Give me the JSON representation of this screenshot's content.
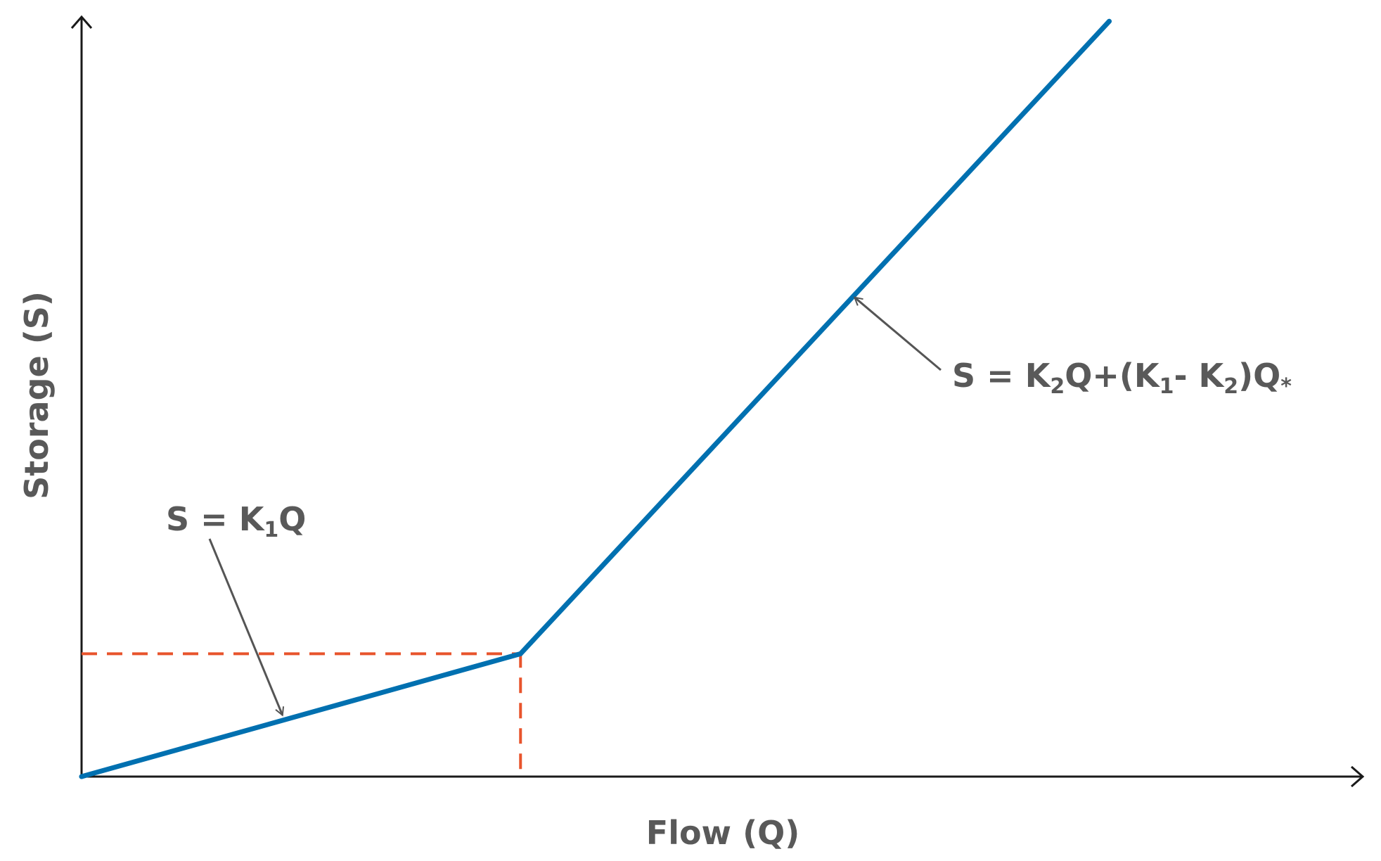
{
  "chart_data": {
    "type": "line",
    "title": "",
    "xlabel": "Flow (Q)",
    "ylabel": "Storage (S)",
    "xlim": [
      0,
      10
    ],
    "ylim": [
      0,
      10
    ],
    "grid": false,
    "legend": "none",
    "series": [
      {
        "x": [
          0,
          3.43,
          8.03
        ],
        "y": [
          0,
          1.62,
          9.96
        ],
        "color": "#0070b0"
      }
    ],
    "reference_lines": [
      {
        "orientation": "horizontal",
        "y": 1.62,
        "x_from": 0,
        "x_to": 3.43,
        "style": "dashed",
        "color": "#e8542c"
      },
      {
        "orientation": "vertical",
        "x": 3.43,
        "y_from": 0.1,
        "y_to": 1.62,
        "style": "dashed",
        "color": "#e8542c"
      }
    ],
    "annotations": [
      {
        "parts": [
          {
            "text": "S = K",
            "sub": false
          },
          {
            "text": "1",
            "sub": true
          },
          {
            "text": "Q",
            "sub": false
          }
        ],
        "points_to": {
          "x": 1.57,
          "y": 0.81
        }
      },
      {
        "parts": [
          {
            "text": "S = K",
            "sub": false
          },
          {
            "text": "2",
            "sub": true
          },
          {
            "text": "Q+(K",
            "sub": false
          },
          {
            "text": "1",
            "sub": true
          },
          {
            "text": "- K",
            "sub": false
          },
          {
            "text": "2",
            "sub": true
          },
          {
            "text": ")Q",
            "sub": false
          },
          {
            "text": "*",
            "sub": true
          }
        ],
        "points_to": {
          "x": 6.04,
          "y": 6.32
        }
      }
    ]
  },
  "colors": {
    "curve": "#0070b0",
    "reference": "#e8542c",
    "axis": "#1a1a1a",
    "label": "#595959",
    "pointer": "#555555"
  }
}
